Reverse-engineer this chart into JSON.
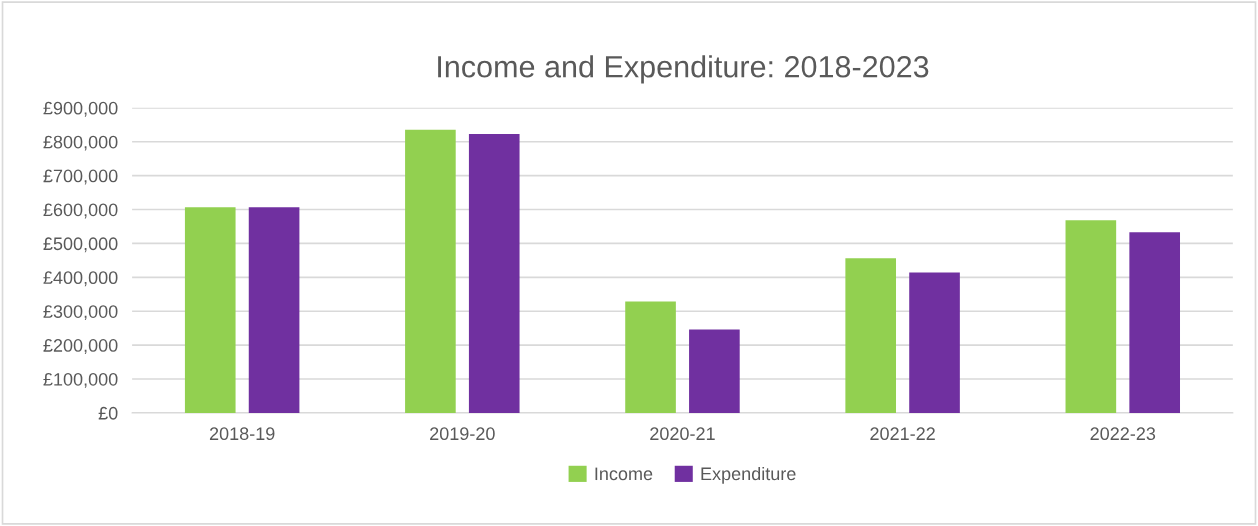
{
  "chart_data": {
    "type": "bar",
    "title": "Income and Expenditure: 2018-2023",
    "categories": [
      "2018-19",
      "2019-20",
      "2020-21",
      "2021-22",
      "2022-23"
    ],
    "series": [
      {
        "name": "Income",
        "color": "#92d050",
        "values": [
          607000,
          835000,
          329000,
          456000,
          568000
        ]
      },
      {
        "name": "Expenditure",
        "color": "#7030a0",
        "values": [
          607000,
          823000,
          246000,
          414000,
          533000
        ]
      }
    ],
    "ylim": [
      0,
      900000
    ],
    "yticks": [
      {
        "value": 0,
        "label": "£0"
      },
      {
        "value": 100000,
        "label": "£100,000"
      },
      {
        "value": 200000,
        "label": "£200,000"
      },
      {
        "value": 300000,
        "label": "£300,000"
      },
      {
        "value": 400000,
        "label": "£400,000"
      },
      {
        "value": 500000,
        "label": "£500,000"
      },
      {
        "value": 600000,
        "label": "£600,000"
      },
      {
        "value": 700000,
        "label": "£700,000"
      },
      {
        "value": 800000,
        "label": "£800,000"
      },
      {
        "value": 900000,
        "label": "£900,000"
      }
    ],
    "grid": "y",
    "legend": "bottom"
  }
}
